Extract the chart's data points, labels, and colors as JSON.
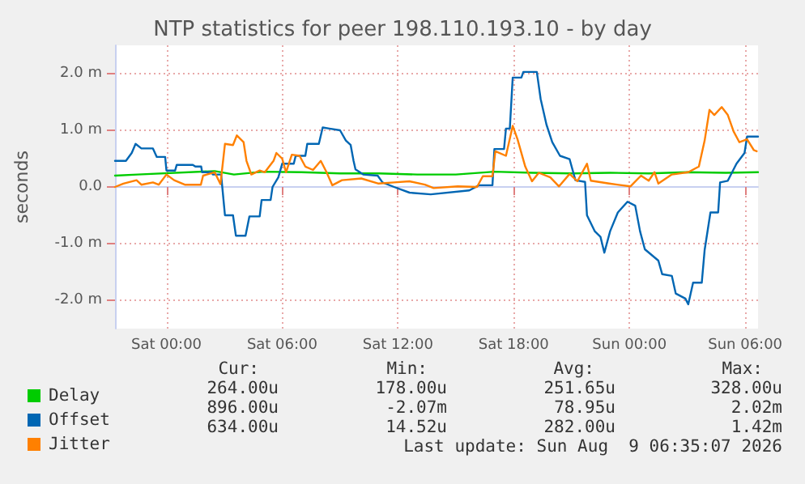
{
  "chart_data": {
    "type": "line",
    "title": "NTP statistics for peer 198.110.193.10 - by day",
    "ylabel": "seconds",
    "xlim": [
      "2026-08-07T21:20",
      "2026-08-09T06:40"
    ],
    "xticks": [
      {
        "value": "2026-08-08T00:00",
        "label": "Sat 00:00"
      },
      {
        "value": "2026-08-08T06:00",
        "label": "Sat 06:00"
      },
      {
        "value": "2026-08-08T12:00",
        "label": "Sat 12:00"
      },
      {
        "value": "2026-08-08T18:00",
        "label": "Sat 18:00"
      },
      {
        "value": "2026-08-09T00:00",
        "label": "Sun 00:00"
      },
      {
        "value": "2026-08-09T06:00",
        "label": "Sun 06:00"
      }
    ],
    "ylim": [
      -2.5,
      2.5
    ],
    "yticks": [
      {
        "value": -2,
        "label": "-2.0 m"
      },
      {
        "value": -1,
        "label": "-1.0 m"
      },
      {
        "value": 0,
        "label": "0.0"
      },
      {
        "value": 1,
        "label": "1.0 m"
      },
      {
        "value": 2,
        "label": "2.0 m"
      }
    ],
    "grid": true,
    "legend": "bottom left",
    "marker": "none",
    "line_style": "solid",
    "series": [
      {
        "name": "Delay",
        "color": "#00cc00",
        "x": [
          "2026-08-07T21:20",
          "2026-08-07T22:30",
          "2026-08-08T02:30",
          "2026-08-08T03:30",
          "2026-08-08T05:00",
          "2026-08-08T07:00",
          "2026-08-08T09:00",
          "2026-08-08T11:00",
          "2026-08-08T13:00",
          "2026-08-08T15:00",
          "2026-08-08T17:00",
          "2026-08-08T19:00",
          "2026-08-08T21:00",
          "2026-08-08T23:00",
          "2026-08-09T01:00",
          "2026-08-09T03:00",
          "2026-08-09T05:00",
          "2026-08-09T06:40"
        ],
        "values": [
          0.2,
          0.22,
          0.28,
          0.22,
          0.27,
          0.26,
          0.24,
          0.24,
          0.22,
          0.22,
          0.27,
          0.25,
          0.24,
          0.25,
          0.24,
          0.26,
          0.25,
          0.26
        ]
      },
      {
        "name": "Offset",
        "color": "#0066b3",
        "x": [
          "2026-08-07T21:20",
          "2026-08-07T21:54",
          "2026-08-07T22:12",
          "2026-08-07T22:24",
          "2026-08-07T22:42",
          "2026-08-07T23:18",
          "2026-08-07T23:30",
          "2026-08-07T23:56",
          "2026-08-08T00:00",
          "2026-08-08T00:27",
          "2026-08-08T00:32",
          "2026-08-08T01:22",
          "2026-08-08T01:30",
          "2026-08-08T01:48",
          "2026-08-08T01:51",
          "2026-08-08T02:21",
          "2026-08-08T02:24",
          "2026-08-08T02:50",
          "2026-08-08T03:02",
          "2026-08-08T03:27",
          "2026-08-08T03:36",
          "2026-08-08T04:06",
          "2026-08-08T04:18",
          "2026-08-08T04:50",
          "2026-08-08T04:56",
          "2026-08-08T05:24",
          "2026-08-08T05:30",
          "2026-08-08T05:48",
          "2026-08-08T06:00",
          "2026-08-08T06:36",
          "2026-08-08T06:42",
          "2026-08-08T07:12",
          "2026-08-08T07:18",
          "2026-08-08T07:54",
          "2026-08-08T08:06",
          "2026-08-08T08:27",
          "2026-08-08T09:00",
          "2026-08-08T09:18",
          "2026-08-08T09:33",
          "2026-08-08T09:42",
          "2026-08-08T09:48",
          "2026-08-08T10:12",
          "2026-08-08T10:57",
          "2026-08-08T11:12",
          "2026-08-08T11:48",
          "2026-08-08T12:36",
          "2026-08-08T13:42",
          "2026-08-08T15:42",
          "2026-08-08T16:12",
          "2026-08-08T16:54",
          "2026-08-08T17:00",
          "2026-08-08T17:30",
          "2026-08-08T17:36",
          "2026-08-08T17:48",
          "2026-08-08T17:57",
          "2026-08-08T18:24",
          "2026-08-08T18:30",
          "2026-08-08T19:12",
          "2026-08-08T19:24",
          "2026-08-08T19:42",
          "2026-08-08T20:00",
          "2026-08-08T20:24",
          "2026-08-08T20:54",
          "2026-08-08T21:12",
          "2026-08-08T21:42",
          "2026-08-08T21:48",
          "2026-08-08T22:12",
          "2026-08-08T22:30",
          "2026-08-08T22:42",
          "2026-08-08T23:00",
          "2026-08-08T23:24",
          "2026-08-08T23:54",
          "2026-08-09T00:18",
          "2026-08-09T00:33",
          "2026-08-09T00:48",
          "2026-08-09T01:30",
          "2026-08-09T01:42",
          "2026-08-09T02:12",
          "2026-08-09T02:24",
          "2026-08-09T02:54",
          "2026-08-09T03:03",
          "2026-08-09T03:18",
          "2026-08-09T03:45",
          "2026-08-09T03:54",
          "2026-08-09T04:12",
          "2026-08-09T04:36",
          "2026-08-09T04:42",
          "2026-08-09T05:06",
          "2026-08-09T05:33",
          "2026-08-09T05:58",
          "2026-08-09T06:06",
          "2026-08-09T06:40"
        ],
        "values": [
          0.46,
          0.46,
          0.6,
          0.76,
          0.68,
          0.68,
          0.53,
          0.53,
          0.29,
          0.29,
          0.39,
          0.39,
          0.36,
          0.36,
          0.26,
          0.26,
          0.22,
          0.22,
          -0.5,
          -0.5,
          -0.86,
          -0.86,
          -0.52,
          -0.52,
          -0.23,
          -0.23,
          0,
          0.17,
          0.41,
          0.41,
          0.55,
          0.55,
          0.76,
          0.76,
          1.05,
          1.03,
          1.0,
          0.82,
          0.74,
          0.46,
          0.31,
          0.22,
          0.2,
          0.08,
          0,
          -0.1,
          -0.13,
          -0.06,
          0.03,
          0.03,
          0.67,
          0.67,
          1.03,
          1.03,
          1.93,
          1.93,
          2.03,
          2.03,
          1.55,
          1.1,
          0.79,
          0.55,
          0.49,
          0.12,
          0.09,
          -0.5,
          -0.78,
          -0.88,
          -1.16,
          -0.78,
          -0.45,
          -0.26,
          -0.33,
          -0.78,
          -1.1,
          -1.3,
          -1.54,
          -1.57,
          -1.88,
          -1.97,
          -2.07,
          -1.69,
          -1.69,
          -1.11,
          -0.45,
          -0.45,
          0.08,
          0.11,
          0.41,
          0.6,
          0.89,
          0.89
        ]
      },
      {
        "name": "Jitter",
        "color": "#ff8000",
        "x": [
          "2026-08-07T21:20",
          "2026-08-07T21:46",
          "2026-08-07T22:27",
          "2026-08-07T22:42",
          "2026-08-07T23:18",
          "2026-08-07T23:36",
          "2026-08-08T00:00",
          "2026-08-08T00:24",
          "2026-08-08T00:57",
          "2026-08-08T01:47",
          "2026-08-08T01:54",
          "2026-08-08T02:30",
          "2026-08-08T02:48",
          "2026-08-08T03:02",
          "2026-08-08T03:27",
          "2026-08-08T03:39",
          "2026-08-08T04:00",
          "2026-08-08T04:09",
          "2026-08-08T04:24",
          "2026-08-08T04:50",
          "2026-08-08T05:06",
          "2026-08-08T05:33",
          "2026-08-08T05:42",
          "2026-08-08T06:00",
          "2026-08-08T06:12",
          "2026-08-08T06:30",
          "2026-08-08T06:54",
          "2026-08-08T07:12",
          "2026-08-08T07:36",
          "2026-08-08T08:00",
          "2026-08-08T08:18",
          "2026-08-08T08:36",
          "2026-08-08T09:06",
          "2026-08-08T10:06",
          "2026-08-08T11:00",
          "2026-08-08T11:48",
          "2026-08-08T12:36",
          "2026-08-08T13:24",
          "2026-08-08T13:51",
          "2026-08-08T15:06",
          "2026-08-08T16:06",
          "2026-08-08T16:24",
          "2026-08-08T16:54",
          "2026-08-08T17:03",
          "2026-08-08T17:36",
          "2026-08-08T17:57",
          "2026-08-08T18:12",
          "2026-08-08T18:36",
          "2026-08-08T18:57",
          "2026-08-08T19:18",
          "2026-08-08T19:54",
          "2026-08-08T20:21",
          "2026-08-08T20:54",
          "2026-08-08T21:18",
          "2026-08-08T21:48",
          "2026-08-08T22:00",
          "2026-08-08T22:57",
          "2026-08-09T00:03",
          "2026-08-09T00:36",
          "2026-08-09T01:00",
          "2026-08-09T01:18",
          "2026-08-09T01:30",
          "2026-08-09T02:12",
          "2026-08-09T03:03",
          "2026-08-09T03:36",
          "2026-08-09T03:54",
          "2026-08-09T04:09",
          "2026-08-09T04:24",
          "2026-08-09T04:47",
          "2026-08-09T05:06",
          "2026-08-09T05:24",
          "2026-08-09T05:42",
          "2026-08-09T06:06",
          "2026-08-09T06:27",
          "2026-08-09T06:36"
        ],
        "values": [
          0,
          0.06,
          0.12,
          0.04,
          0.08,
          0.04,
          0.22,
          0.12,
          0.04,
          0.04,
          0.2,
          0.26,
          0.05,
          0.76,
          0.74,
          0.91,
          0.79,
          0.46,
          0.22,
          0.29,
          0.26,
          0.46,
          0.6,
          0.5,
          0.26,
          0.57,
          0.55,
          0.36,
          0.3,
          0.46,
          0.26,
          0.03,
          0.12,
          0.15,
          0.06,
          0.08,
          0.1,
          0.04,
          -0.02,
          0.01,
          0,
          0.19,
          0.19,
          0.63,
          0.55,
          1.08,
          0.84,
          0.36,
          0.1,
          0.25,
          0.17,
          0.01,
          0.23,
          0.1,
          0.41,
          0.11,
          0.06,
          0.01,
          0.2,
          0.11,
          0.26,
          0.06,
          0.22,
          0.26,
          0.36,
          0.82,
          1.36,
          1.27,
          1.41,
          1.27,
          0.98,
          0.79,
          0.84,
          0.65,
          0.63
        ]
      }
    ],
    "annotations": [
      "Cur:",
      "Min:",
      "Avg:",
      "Max:",
      "264.00u",
      "178.00u",
      "251.65u",
      "328.00u",
      "896.00u",
      "-2.07m",
      "78.95u",
      "2.02m",
      "634.00u",
      "14.52u",
      "282.00u",
      "1.42m",
      "Last update: Sun Aug  9 06:35:07 2026"
    ]
  }
}
